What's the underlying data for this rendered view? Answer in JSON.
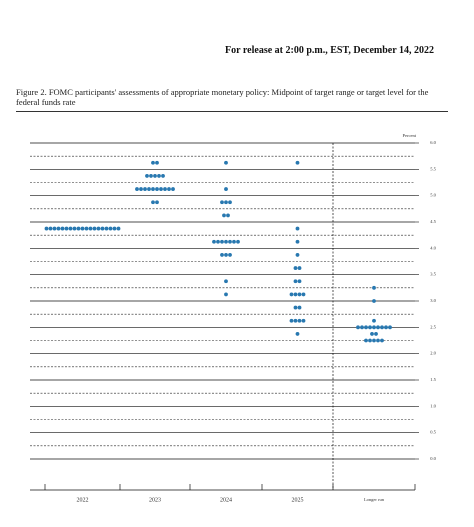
{
  "header": {
    "release": "For release at 2:00 p.m., EST, December 14, 2022"
  },
  "chart_data": {
    "type": "dot",
    "title": "Figure 2.  FOMC participants' assessments of appropriate monetary policy:  Midpoint of target range or target level for the federal funds rate",
    "y_unit_label": "Percent",
    "categories": [
      "2022",
      "2023",
      "2024",
      "2025",
      "Longer run"
    ],
    "values": [
      [
        4.375,
        4.375,
        4.375,
        4.375,
        4.375,
        4.375,
        4.375,
        4.375,
        4.375,
        4.375,
        4.375,
        4.375,
        4.375,
        4.375,
        4.375,
        4.375,
        4.375,
        4.375,
        4.375
      ],
      [
        5.625,
        5.625,
        5.375,
        5.375,
        5.375,
        5.375,
        5.375,
        5.125,
        5.125,
        5.125,
        5.125,
        5.125,
        5.125,
        5.125,
        5.125,
        5.125,
        5.125,
        4.875,
        4.875
      ],
      [
        5.625,
        5.125,
        4.875,
        4.875,
        4.875,
        4.625,
        4.625,
        4.125,
        4.125,
        4.125,
        4.125,
        4.125,
        4.125,
        4.125,
        3.875,
        3.875,
        3.875,
        3.375,
        3.125
      ],
      [
        5.625,
        4.375,
        4.125,
        3.875,
        3.625,
        3.625,
        3.375,
        3.375,
        3.125,
        3.125,
        3.125,
        3.125,
        2.875,
        2.875,
        2.625,
        2.625,
        2.625,
        2.625,
        2.375
      ],
      [
        3.25,
        3.0,
        2.625,
        2.5,
        2.5,
        2.5,
        2.5,
        2.5,
        2.5,
        2.5,
        2.5,
        2.5,
        2.375,
        2.375,
        2.25,
        2.25,
        2.25,
        2.25,
        2.25
      ]
    ],
    "color": "#2878b0",
    "ylim": [
      0,
      6
    ],
    "yticks": [
      {
        "value": 0,
        "label": "0.0"
      },
      {
        "value": 0.5,
        "label": "0.5"
      },
      {
        "value": 1,
        "label": "1.0"
      },
      {
        "value": 1.5,
        "label": "1.5"
      },
      {
        "value": 2,
        "label": "2.0"
      },
      {
        "value": 2.5,
        "label": "2.5"
      },
      {
        "value": 3,
        "label": "3.0"
      },
      {
        "value": 3.5,
        "label": "3.5"
      },
      {
        "value": 4,
        "label": "4.0"
      },
      {
        "value": 4.5,
        "label": "4.5"
      },
      {
        "value": 5,
        "label": "5.0"
      },
      {
        "value": 5.5,
        "label": "5.5"
      },
      {
        "value": 6,
        "label": "6.0"
      }
    ],
    "grid": true
  }
}
